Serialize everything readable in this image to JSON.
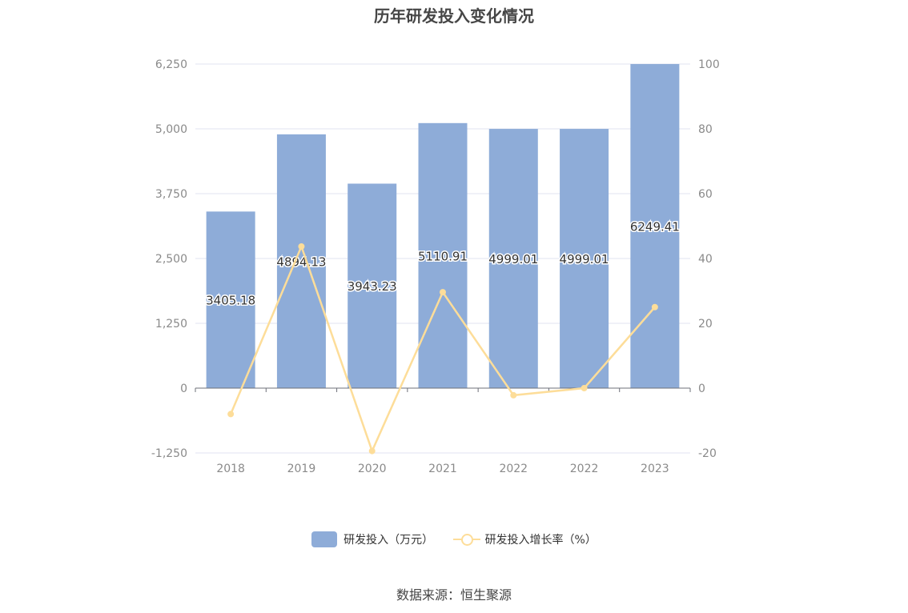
{
  "chart_data": {
    "type": "bar",
    "title": "历年研发投入变化情况",
    "categories": [
      "2018",
      "2019",
      "2020",
      "2021",
      "2022",
      "2022",
      "2023"
    ],
    "series": [
      {
        "name": "研发投入（万元）",
        "type": "bar",
        "axis": "left",
        "values": [
          3405.18,
          4894.13,
          3943.23,
          5110.91,
          4999.01,
          4999.01,
          6249.41
        ],
        "labels": [
          "3405.18",
          "4894.13",
          "3943.23",
          "5110.91",
          "4999.01",
          "4999.01",
          "6249.41"
        ],
        "color": "#8eacd8"
      },
      {
        "name": "研发投入增长率（%）",
        "type": "line",
        "axis": "right",
        "values": [
          -8,
          43.7,
          -19.4,
          29.6,
          -2.2,
          0,
          25.0
        ],
        "color": "#fddd99"
      }
    ],
    "y_left": {
      "ylim": [
        -1250,
        6250
      ],
      "ticks": [
        "-1,250",
        "0",
        "1,250",
        "2,500",
        "3,750",
        "5,000",
        "6,250"
      ]
    },
    "y_right": {
      "ylim": [
        -20,
        100
      ],
      "ticks": [
        "-20",
        "0",
        "20",
        "40",
        "60",
        "80",
        "100"
      ]
    },
    "grid": true,
    "legend_position": "bottom"
  },
  "source": "数据来源：恒生聚源"
}
